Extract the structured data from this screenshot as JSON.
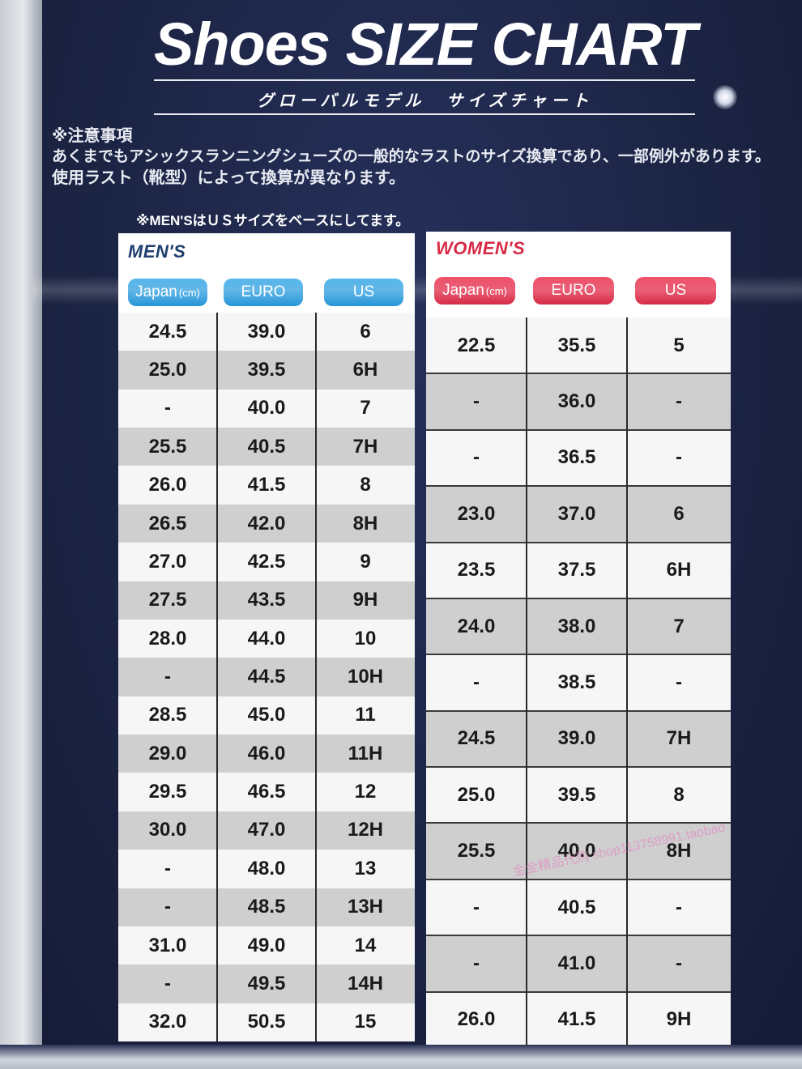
{
  "header": {
    "title": "Shoes SIZE CHART",
    "subtitle": "グローバルモデル　サイズチャート"
  },
  "notice": {
    "heading": "※注意事項",
    "line1": "あくまでもアシックスランニングシューズの一般的なラストのサイズ換算であり、一部例外があります。",
    "line2": "使用ラスト（靴型）によって換算が異なります。",
    "mens_note": "※MEN'SはＵＳサイズをベースにしてます。"
  },
  "mens": {
    "title": "MEN'S",
    "columns": [
      {
        "label": "Japan",
        "unit": "(cm)"
      },
      {
        "label": "EURO",
        "unit": ""
      },
      {
        "label": "US",
        "unit": ""
      }
    ],
    "rows": [
      [
        "24.5",
        "39.0",
        "6"
      ],
      [
        "25.0",
        "39.5",
        "6H"
      ],
      [
        "-",
        "40.0",
        "7"
      ],
      [
        "25.5",
        "40.5",
        "7H"
      ],
      [
        "26.0",
        "41.5",
        "8"
      ],
      [
        "26.5",
        "42.0",
        "8H"
      ],
      [
        "27.0",
        "42.5",
        "9"
      ],
      [
        "27.5",
        "43.5",
        "9H"
      ],
      [
        "28.0",
        "44.0",
        "10"
      ],
      [
        "-",
        "44.5",
        "10H"
      ],
      [
        "28.5",
        "45.0",
        "11"
      ],
      [
        "29.0",
        "46.0",
        "11H"
      ],
      [
        "29.5",
        "46.5",
        "12"
      ],
      [
        "30.0",
        "47.0",
        "12H"
      ],
      [
        "-",
        "48.0",
        "13"
      ],
      [
        "-",
        "48.5",
        "13H"
      ],
      [
        "31.0",
        "49.0",
        "14"
      ],
      [
        "-",
        "49.5",
        "14H"
      ],
      [
        "32.0",
        "50.5",
        "15"
      ]
    ]
  },
  "womens": {
    "title": "WOMEN'S",
    "columns": [
      {
        "label": "Japan",
        "unit": "(cm)"
      },
      {
        "label": "EURO",
        "unit": ""
      },
      {
        "label": "US",
        "unit": ""
      }
    ],
    "rows": [
      [
        "22.5",
        "35.5",
        "5"
      ],
      [
        "-",
        "36.0",
        "-"
      ],
      [
        "-",
        "36.5",
        "-"
      ],
      [
        "23.0",
        "37.0",
        "6"
      ],
      [
        "23.5",
        "37.5",
        "6H"
      ],
      [
        "24.0",
        "38.0",
        "7"
      ],
      [
        "-",
        "38.5",
        "-"
      ],
      [
        "24.5",
        "39.0",
        "7H"
      ],
      [
        "25.0",
        "39.5",
        "8"
      ],
      [
        "25.5",
        "40.0",
        "8H"
      ],
      [
        "-",
        "40.5",
        "-"
      ],
      [
        "-",
        "41.0",
        "-"
      ],
      [
        "26.0",
        "41.5",
        "9H"
      ]
    ]
  },
  "watermark": "金金精品代购 shop113758991.taobao",
  "colors": {
    "board": "#1f2848",
    "mens_accent": "#2a97d8",
    "womens_accent": "#d62a46",
    "mens_title": "#1e3e6e",
    "womens_title": "#d62a46"
  }
}
